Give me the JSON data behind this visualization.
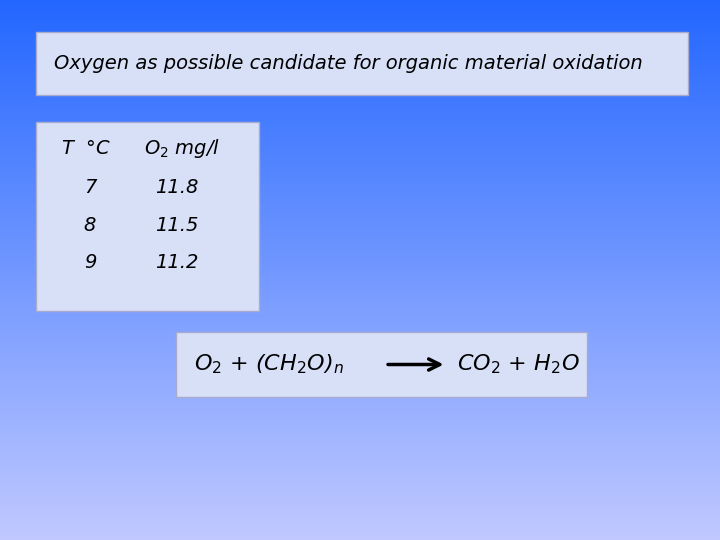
{
  "bg_color_top": "#2266ff",
  "bg_color_bottom": "#c0c8ff",
  "title_box_text": "Oxygen as possible candidate for organic material oxidation",
  "title_box_bg": "#d8e0f8",
  "title_box_edge": "#aaaacc",
  "table_bg": "#d8e0f8",
  "table_edge": "#aaaacc",
  "equation_box_bg": "#d8e0f8",
  "equation_box_edge": "#aaaacc",
  "text_color": "#000000",
  "font_size_title": 14,
  "font_size_table": 14,
  "font_size_equation": 16
}
